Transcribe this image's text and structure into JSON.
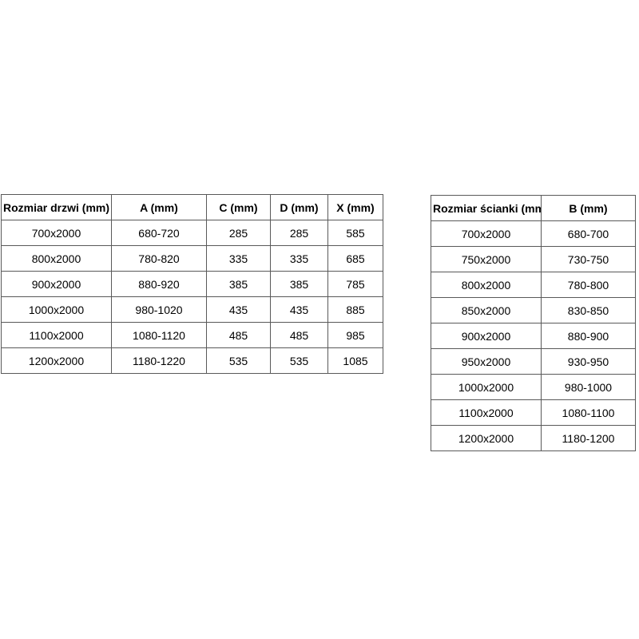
{
  "colors": {
    "background": "#ffffff",
    "border": "#595959",
    "text": "#000000"
  },
  "tables": {
    "doors": {
      "headers": [
        "Rozmiar drzwi (mm)",
        "A (mm)",
        "C (mm)",
        "D (mm)",
        "X (mm)"
      ],
      "rows": [
        [
          "700x2000",
          "680-720",
          "285",
          "285",
          "585"
        ],
        [
          "800x2000",
          "780-820",
          "335",
          "335",
          "685"
        ],
        [
          "900x2000",
          "880-920",
          "385",
          "385",
          "785"
        ],
        [
          "1000x2000",
          "980-1020",
          "435",
          "435",
          "885"
        ],
        [
          "1100x2000",
          "1080-1120",
          "485",
          "485",
          "985"
        ],
        [
          "1200x2000",
          "1180-1220",
          "535",
          "535",
          "1085"
        ]
      ]
    },
    "walls": {
      "headers": [
        "Rozmiar ścianki (mm)",
        "B (mm)"
      ],
      "rows": [
        [
          "700x2000",
          "680-700"
        ],
        [
          "750x2000",
          "730-750"
        ],
        [
          "800x2000",
          "780-800"
        ],
        [
          "850x2000",
          "830-850"
        ],
        [
          "900x2000",
          "880-900"
        ],
        [
          "950x2000",
          "930-950"
        ],
        [
          "1000x2000",
          "980-1000"
        ],
        [
          "1100x2000",
          "1080-1100"
        ],
        [
          "1200x2000",
          "1180-1200"
        ]
      ]
    }
  }
}
